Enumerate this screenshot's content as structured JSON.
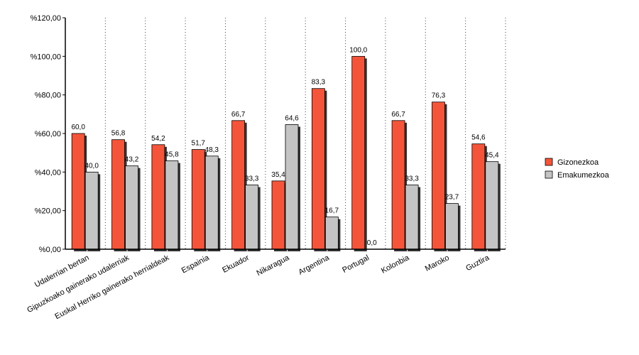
{
  "chart_data": {
    "type": "bar",
    "categories": [
      "Udalerrian bertan",
      "Gipuzkoako gainerako udalerriak",
      "Euskal Herriko gainerako herrialdeak",
      "Espainia",
      "Ekuador",
      "Nikaragua",
      "Argentina",
      "Portugal",
      "Kolonbia",
      "Maroko",
      "Guztira"
    ],
    "series": [
      {
        "name": "Gizonezkoa",
        "color": "#f4553a",
        "values": [
          60.0,
          56.8,
          54.2,
          51.7,
          66.7,
          35.4,
          83.3,
          100.0,
          66.7,
          76.3,
          54.6
        ],
        "value_labels": [
          "60,0",
          "56,8",
          "54,2",
          "51,7",
          "66,7",
          "35,4",
          "83,3",
          "100,0",
          "66,7",
          "76,3",
          "54,6"
        ]
      },
      {
        "name": "Emakumezkoa",
        "color": "#c4c4c4",
        "values": [
          40.0,
          43.2,
          45.8,
          48.3,
          33.3,
          64.6,
          16.7,
          0.0,
          33.3,
          23.7,
          45.4
        ],
        "value_labels": [
          "40,0",
          "43,2",
          "45,8",
          "48,3",
          "33,3",
          "64,6",
          "16,7",
          "0,0",
          "33,3",
          "23,7",
          "45,4"
        ]
      }
    ],
    "ylim": [
      0,
      120
    ],
    "yticks": [
      {
        "value": 0,
        "label": "%0,00"
      },
      {
        "value": 20,
        "label": "%20,00"
      },
      {
        "value": 40,
        "label": "%40,00"
      },
      {
        "value": 60,
        "label": "%60,00"
      },
      {
        "value": 80,
        "label": "%80,00"
      },
      {
        "value": 100,
        "label": "%100,00"
      },
      {
        "value": 120,
        "label": "%120,00"
      }
    ],
    "legend": "right",
    "grid": true
  }
}
